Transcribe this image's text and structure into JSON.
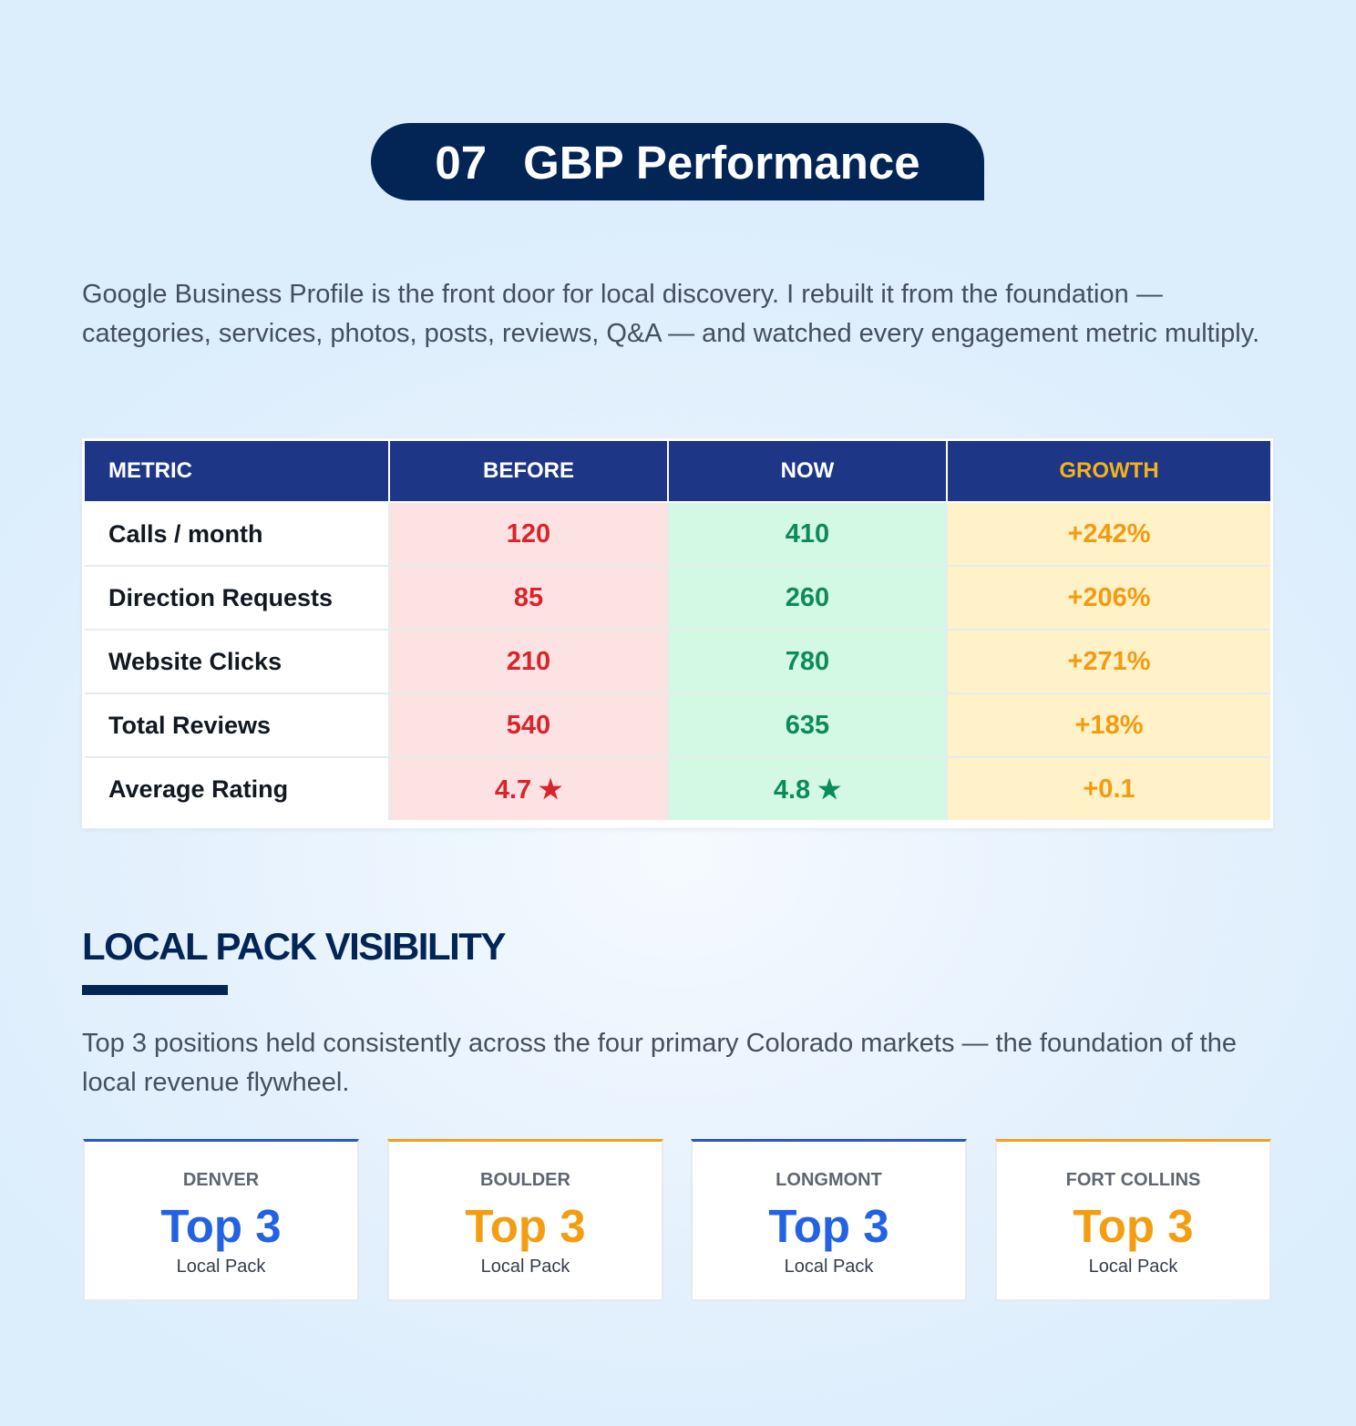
{
  "header": {
    "section_number": "07",
    "section_title": "GBP Performance"
  },
  "intro_text": "Google Business Profile is the front door for local discovery. I rebuilt it from the foundation — categories, services, photos, posts, reviews, Q&A — and watched every engagement metric multiply.",
  "metrics_table": {
    "headers": [
      "METRIC",
      "BEFORE",
      "NOW",
      "GROWTH"
    ],
    "rows": [
      {
        "metric": "Calls / month",
        "before": "120",
        "now": "410",
        "growth": "+242%"
      },
      {
        "metric": "Direction Requests",
        "before": "85",
        "now": "260",
        "growth": "+206%"
      },
      {
        "metric": "Website Clicks",
        "before": "210",
        "now": "780",
        "growth": "+271%"
      },
      {
        "metric": "Total Reviews",
        "before": "540",
        "now": "635",
        "growth": "+18%"
      },
      {
        "metric": "Average Rating",
        "before": "4.7 ★",
        "now": "4.8 ★",
        "growth": "+0.1"
      }
    ]
  },
  "local_pack": {
    "heading": "LOCAL PACK VISIBILITY",
    "text": "Top 3 positions held consistently across the four primary Colorado markets — the foundation of the local revenue flywheel.",
    "cards": [
      {
        "city": "DENVER",
        "rank": "Top 3",
        "label": "Local Pack",
        "accent": "#2362e3"
      },
      {
        "city": "BOULDER",
        "rank": "Top 3",
        "label": "Local Pack",
        "accent": "#f39e11"
      },
      {
        "city": "LONGMONT",
        "rank": "Top 3",
        "label": "Local Pack",
        "accent": "#2362e3"
      },
      {
        "city": "FORT COLLINS",
        "rank": "Top 3",
        "label": "Local Pack",
        "accent": "#f39e11"
      }
    ]
  },
  "colors": {
    "navy": "#032556",
    "table_header": "#1e3686",
    "growth_header": "#f5b21a",
    "before_text": "#d8252b",
    "now_text": "#0d8c57",
    "growth_text": "#f29b12"
  }
}
